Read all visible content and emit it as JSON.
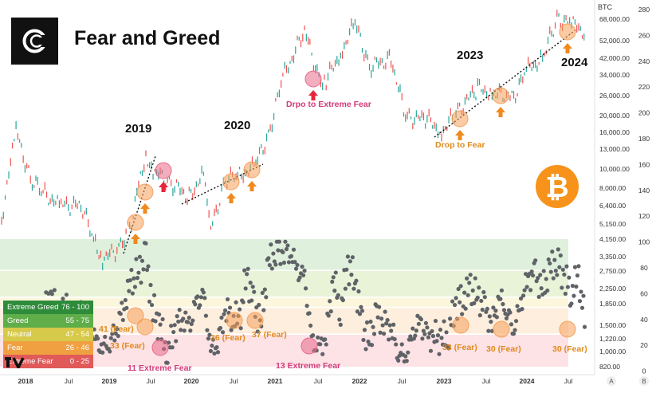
{
  "header": {
    "title": "Fear and Greed"
  },
  "legend": [
    {
      "label": "Extreme Greed",
      "range": "76 - 100",
      "color": "#2e8b3a"
    },
    {
      "label": "Greed",
      "range": "55 - 75",
      "color": "#5fae4a"
    },
    {
      "label": "Neutral",
      "range": "47 - 54",
      "color": "#d7c94a"
    },
    {
      "label": "Fear",
      "range": "26 - 46",
      "color": "#f0a040"
    },
    {
      "label": "Extreme Fear",
      "range": "0 - 25",
      "color": "#e05a5a"
    }
  ],
  "chart_data": [
    {
      "type": "line",
      "title": "",
      "xlabel": "",
      "ylabel": "BTC",
      "y_axis_label": "BTC",
      "scale": "log",
      "ylim": [
        820,
        80000
      ],
      "x_ticks": [
        "2018",
        "Jul",
        "2019",
        "Jul",
        "2020",
        "Jul",
        "2021",
        "Jul",
        "2022",
        "Jul",
        "2023",
        "Jul",
        "2024",
        "Jul"
      ],
      "y_ticks": [
        "68,000.00",
        "52,000.00",
        "42,000.00",
        "34,000.00",
        "26,000.00",
        "20,000.00",
        "16,000.00",
        "13,000.00",
        "10,000.00",
        "8,000.00",
        "6,400.00",
        "5,150.00",
        "4,150.00",
        "3,350.00",
        "2,750.00",
        "2,250.00",
        "1,850.00",
        "1,500.00",
        "1,220.00",
        "1,000.00",
        "820.00"
      ],
      "series": [
        {
          "values": [
            {
              "x": "2017-10",
              "y": 5500
            },
            {
              "x": "2017-12",
              "y": 17000
            },
            {
              "x": "2018-02",
              "y": 9000
            },
            {
              "x": "2018-04",
              "y": 7500
            },
            {
              "x": "2018-06",
              "y": 6500
            },
            {
              "x": "2018-09",
              "y": 6500
            },
            {
              "x": "2018-11",
              "y": 4000
            },
            {
              "x": "2018-12",
              "y": 3300
            },
            {
              "x": "2019-02",
              "y": 3700
            },
            {
              "x": "2019-04",
              "y": 5200
            },
            {
              "x": "2019-05",
              "y": 8000
            },
            {
              "x": "2019-06",
              "y": 12500
            },
            {
              "x": "2019-07",
              "y": 10000
            },
            {
              "x": "2019-09",
              "y": 9000
            },
            {
              "x": "2019-12",
              "y": 7200
            },
            {
              "x": "2020-02",
              "y": 9800
            },
            {
              "x": "2020-03",
              "y": 4800
            },
            {
              "x": "2020-05",
              "y": 9000
            },
            {
              "x": "2020-07",
              "y": 9500
            },
            {
              "x": "2020-09",
              "y": 10500
            },
            {
              "x": "2020-11",
              "y": 16000
            },
            {
              "x": "2021-01",
              "y": 33000
            },
            {
              "x": "2021-04",
              "y": 60000
            },
            {
              "x": "2021-06",
              "y": 33000
            },
            {
              "x": "2021-07",
              "y": 32000
            },
            {
              "x": "2021-09",
              "y": 45000
            },
            {
              "x": "2021-11",
              "y": 66000
            },
            {
              "x": "2022-01",
              "y": 38000
            },
            {
              "x": "2022-04",
              "y": 42000
            },
            {
              "x": "2022-06",
              "y": 20000
            },
            {
              "x": "2022-09",
              "y": 19500
            },
            {
              "x": "2022-11",
              "y": 16500
            },
            {
              "x": "2023-01",
              "y": 21000
            },
            {
              "x": "2023-04",
              "y": 29000
            },
            {
              "x": "2023-06",
              "y": 27000
            },
            {
              "x": "2023-09",
              "y": 26000
            },
            {
              "x": "2023-11",
              "y": 37000
            },
            {
              "x": "2024-01",
              "y": 42000
            },
            {
              "x": "2024-03",
              "y": 70000
            },
            {
              "x": "2024-05",
              "y": 66000
            },
            {
              "x": "2024-07",
              "y": 58000
            }
          ]
        }
      ]
    },
    {
      "type": "scatter",
      "title": "",
      "xlabel": "",
      "ylabel": "",
      "ylim": [
        0,
        100
      ],
      "y_ticks": [
        "280",
        "260",
        "240",
        "220",
        "200",
        "180",
        "160",
        "140",
        "120",
        "100",
        "80",
        "60",
        "40",
        "20",
        "0"
      ],
      "zones": [
        {
          "label": "Extreme Greed",
          "from": 76,
          "to": 100
        },
        {
          "label": "Greed",
          "from": 55,
          "to": 75
        },
        {
          "label": "Neutral",
          "from": 47,
          "to": 54
        },
        {
          "label": "Fear",
          "from": 26,
          "to": 46
        },
        {
          "label": "Extreme Fear",
          "from": 0,
          "to": 25
        }
      ],
      "series": [
        {
          "values": [
            {
              "x": "2018-02",
              "y": 40
            },
            {
              "x": "2018-03",
              "y": 25
            },
            {
              "x": "2018-04",
              "y": 45
            },
            {
              "x": "2018-05",
              "y": 55
            },
            {
              "x": "2018-06",
              "y": 30
            },
            {
              "x": "2018-07",
              "y": 50
            },
            {
              "x": "2018-08",
              "y": 30
            },
            {
              "x": "2018-09",
              "y": 40
            },
            {
              "x": "2018-10",
              "y": 35
            },
            {
              "x": "2018-11",
              "y": 20
            },
            {
              "x": "2018-12",
              "y": 15
            },
            {
              "x": "2019-01",
              "y": 20
            },
            {
              "x": "2019-02",
              "y": 30
            },
            {
              "x": "2019-03",
              "y": 50
            },
            {
              "x": "2019-04",
              "y": 65
            },
            {
              "x": "2019-05",
              "y": 75
            },
            {
              "x": "2019-06",
              "y": 85
            },
            {
              "x": "2019-07",
              "y": 45
            },
            {
              "x": "2019-08",
              "y": 30
            },
            {
              "x": "2019-09",
              "y": 11
            },
            {
              "x": "2019-10",
              "y": 30
            },
            {
              "x": "2019-11",
              "y": 40
            },
            {
              "x": "2019-12",
              "y": 30
            },
            {
              "x": "2020-01",
              "y": 50
            },
            {
              "x": "2020-02",
              "y": 55
            },
            {
              "x": "2020-03",
              "y": 12
            },
            {
              "x": "2020-04",
              "y": 20
            },
            {
              "x": "2020-05",
              "y": 45
            },
            {
              "x": "2020-06",
              "y": 40
            },
            {
              "x": "2020-07",
              "y": 36
            },
            {
              "x": "2020-08",
              "y": 75
            },
            {
              "x": "2020-09",
              "y": 45
            },
            {
              "x": "2020-10",
              "y": 37
            },
            {
              "x": "2020-11",
              "y": 80
            },
            {
              "x": "2020-12",
              "y": 92
            },
            {
              "x": "2021-01",
              "y": 90
            },
            {
              "x": "2021-02",
              "y": 92
            },
            {
              "x": "2021-03",
              "y": 75
            },
            {
              "x": "2021-04",
              "y": 70
            },
            {
              "x": "2021-05",
              "y": 20
            },
            {
              "x": "2021-06",
              "y": 13
            },
            {
              "x": "2021-07",
              "y": 25
            },
            {
              "x": "2021-08",
              "y": 70
            },
            {
              "x": "2021-09",
              "y": 45
            },
            {
              "x": "2021-10",
              "y": 80
            },
            {
              "x": "2021-11",
              "y": 70
            },
            {
              "x": "2021-12",
              "y": 30
            },
            {
              "x": "2022-01",
              "y": 20
            },
            {
              "x": "2022-02",
              "y": 40
            },
            {
              "x": "2022-03",
              "y": 35
            },
            {
              "x": "2022-04",
              "y": 30
            },
            {
              "x": "2022-05",
              "y": 12
            },
            {
              "x": "2022-06",
              "y": 8
            },
            {
              "x": "2022-07",
              "y": 25
            },
            {
              "x": "2022-08",
              "y": 35
            },
            {
              "x": "2022-09",
              "y": 22
            },
            {
              "x": "2022-10",
              "y": 25
            },
            {
              "x": "2022-11",
              "y": 20
            },
            {
              "x": "2022-12",
              "y": 28
            },
            {
              "x": "2023-01",
              "y": 50
            },
            {
              "x": "2023-02",
              "y": 55
            },
            {
              "x": "2023-03",
              "y": 60
            },
            {
              "x": "2023-04",
              "y": 55
            },
            {
              "x": "2023-05",
              "y": 45
            },
            {
              "x": "2023-06",
              "y": 33
            },
            {
              "x": "2023-07",
              "y": 55
            },
            {
              "x": "2023-08",
              "y": 45
            },
            {
              "x": "2023-09",
              "y": 30
            },
            {
              "x": "2023-10",
              "y": 50
            },
            {
              "x": "2023-11",
              "y": 70
            },
            {
              "x": "2023-12",
              "y": 72
            },
            {
              "x": "2024-01",
              "y": 60
            },
            {
              "x": "2024-02",
              "y": 75
            },
            {
              "x": "2024-03",
              "y": 85
            },
            {
              "x": "2024-04",
              "y": 70
            },
            {
              "x": "2024-05",
              "y": 60
            },
            {
              "x": "2024-06",
              "y": 70
            },
            {
              "x": "2024-07",
              "y": 30
            }
          ]
        }
      ]
    }
  ],
  "annotations": {
    "years": [
      "2019",
      "2020",
      "2023",
      "2024"
    ],
    "price_labels": [
      "Drpo to Extreme Fear",
      "Drop to Fear"
    ],
    "index_labels": [
      "41 (Fear)",
      "33 (Fear)",
      "11 Extreme Fear",
      "36 (Fear)",
      "37 (Fear)",
      "13 Extreme Fear",
      "33 (Fear)",
      "30 (Fear)",
      "30 (Fear)"
    ]
  },
  "axes": {
    "top_right_label": "BTC",
    "corner_labels": [
      "A",
      "B"
    ]
  },
  "colors": {
    "up_candle": "#26a69a",
    "down_candle": "#ef5350",
    "index_dots": "#5f6368",
    "fear_circle": "#f5a05a",
    "extreme_fear_circle": "#e86a8a",
    "arrow_up": "#f08a1e",
    "arrow_down": "#e8253a",
    "bitcoin": "#f7931a",
    "extreme_fear_text": "#d23a7a",
    "fear_text": "#e08a1e"
  }
}
